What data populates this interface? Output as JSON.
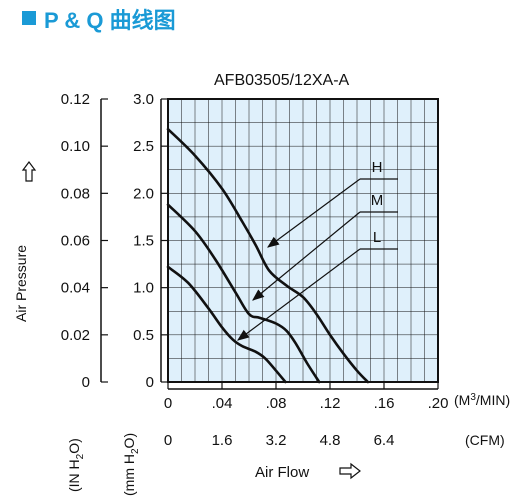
{
  "header": {
    "title": "P & Q 曲线图"
  },
  "chart_data": {
    "type": "line",
    "title": "AFB03505/12XA-A",
    "xlabel": "Air Flow",
    "ylabel": "Air Pressure",
    "x_units": "(M3/MIN)",
    "x2_units": "(CFM)",
    "y_units": "(IN H2O)",
    "y2_units": "(mm H2O)",
    "xlim": [
      0,
      0.2
    ],
    "ylim": [
      0,
      3.0
    ],
    "x_ticks": [
      "0",
      ".04",
      ".08",
      ".12",
      ".16",
      ".20"
    ],
    "x_tick_values": [
      0,
      0.04,
      0.08,
      0.12,
      0.16,
      0.2
    ],
    "x2_ticks": [
      "0",
      "1.6",
      "3.2",
      "4.8",
      "6.4"
    ],
    "x2_tick_values": [
      0,
      0.04,
      0.08,
      0.12,
      0.16
    ],
    "y_ticks": [
      "0",
      "0.5",
      "1.0",
      "1.5",
      "2.0",
      "2.5",
      "3.0"
    ],
    "y_tick_values": [
      0,
      0.5,
      1.0,
      1.5,
      2.0,
      2.5,
      3.0
    ],
    "y2_ticks": [
      "0",
      "0.02",
      "0.04",
      "0.06",
      "0.08",
      "0.10",
      "0.12"
    ],
    "grid": true,
    "series": [
      {
        "name": "H",
        "points": [
          [
            0,
            2.68
          ],
          [
            0.02,
            2.4
          ],
          [
            0.04,
            2.05
          ],
          [
            0.055,
            1.7
          ],
          [
            0.065,
            1.45
          ],
          [
            0.075,
            1.18
          ],
          [
            0.088,
            1.02
          ],
          [
            0.1,
            0.9
          ],
          [
            0.11,
            0.72
          ],
          [
            0.12,
            0.5
          ],
          [
            0.13,
            0.3
          ],
          [
            0.14,
            0.12
          ],
          [
            0.148,
            0
          ]
        ]
      },
      {
        "name": "M",
        "points": [
          [
            0,
            1.88
          ],
          [
            0.02,
            1.6
          ],
          [
            0.035,
            1.3
          ],
          [
            0.05,
            0.95
          ],
          [
            0.06,
            0.72
          ],
          [
            0.068,
            0.68
          ],
          [
            0.08,
            0.62
          ],
          [
            0.088,
            0.54
          ],
          [
            0.095,
            0.4
          ],
          [
            0.103,
            0.2
          ],
          [
            0.112,
            0
          ]
        ]
      },
      {
        "name": "L",
        "points": [
          [
            0,
            1.22
          ],
          [
            0.015,
            1.05
          ],
          [
            0.03,
            0.78
          ],
          [
            0.04,
            0.58
          ],
          [
            0.048,
            0.45
          ],
          [
            0.055,
            0.38
          ],
          [
            0.065,
            0.32
          ],
          [
            0.072,
            0.25
          ],
          [
            0.08,
            0.12
          ],
          [
            0.087,
            0
          ]
        ]
      }
    ]
  }
}
